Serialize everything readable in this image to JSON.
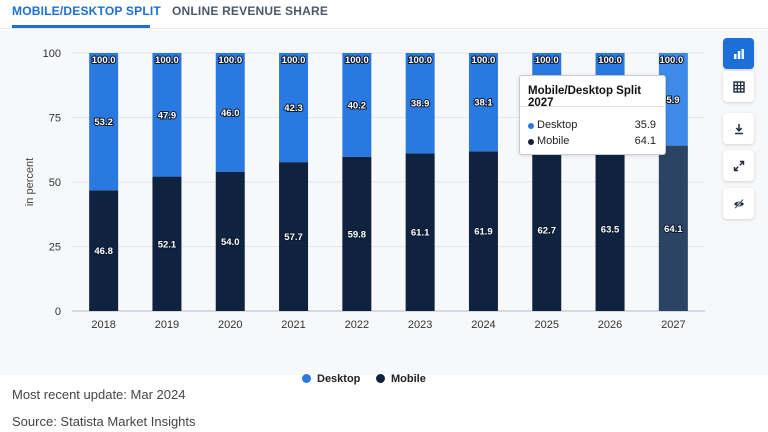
{
  "tabs": [
    {
      "label": "MOBILE/DESKTOP SPLIT",
      "active": true
    },
    {
      "label": "ONLINE REVENUE SHARE",
      "active": false
    }
  ],
  "tooltip": {
    "title": "Mobile/Desktop Split 2027",
    "rows": [
      {
        "label": "Desktop",
        "value": "35.9"
      },
      {
        "label": "Mobile",
        "value": "64.1"
      }
    ]
  },
  "legend": [
    {
      "label": "Desktop",
      "color": "#2979e0"
    },
    {
      "label": "Mobile",
      "color": "#0f2340"
    }
  ],
  "footer": {
    "update": "Most recent update: Mar 2024",
    "source": "Source: Statista Market Insights"
  },
  "colors": {
    "desktop": "#2979e0",
    "mobile": "#0f2340",
    "mobile_highlight": "#2c4463",
    "desktop_highlight": "#3d8ae8",
    "accent": "#1c6fd6"
  },
  "tools": [
    {
      "icon": "bar-chart-icon"
    },
    {
      "icon": "table-icon"
    },
    {
      "icon": "download-icon"
    },
    {
      "icon": "fullscreen-icon"
    },
    {
      "icon": "hide-icon"
    }
  ],
  "chart_data": {
    "type": "bar",
    "stacked": true,
    "categories": [
      "2018",
      "2019",
      "2020",
      "2021",
      "2022",
      "2023",
      "2024",
      "2025",
      "2026",
      "2027"
    ],
    "series": [
      {
        "name": "Mobile",
        "values": [
          46.8,
          52.1,
          54.0,
          57.7,
          59.8,
          61.1,
          61.9,
          62.7,
          63.5,
          64.1
        ]
      },
      {
        "name": "Desktop",
        "values": [
          53.2,
          47.9,
          46.0,
          42.3,
          40.2,
          38.9,
          38.1,
          37.3,
          36.5,
          35.9
        ]
      }
    ],
    "total_labels": [
      "100.0",
      "100.0",
      "100.0",
      "100.0",
      "100.0",
      "100.0",
      "100.0",
      "100.0",
      "100.0",
      "100.0"
    ],
    "highlight_index": 9,
    "ylabel": "in percent",
    "yticks": [
      0,
      25,
      50,
      75,
      100
    ],
    "ylim": [
      0,
      100
    ]
  }
}
